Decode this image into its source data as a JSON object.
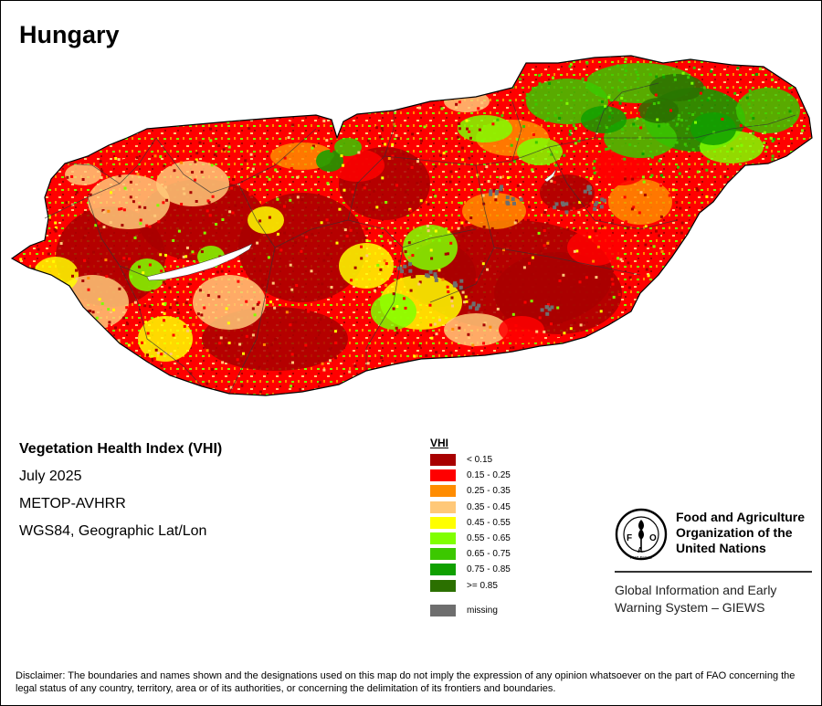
{
  "title": "Hungary",
  "map_info": {
    "index_name": "Vegetation Health Index (VHI)",
    "period": "July 2025",
    "sensor": "METOP-AVHRR",
    "projection": "WGS84, Geographic Lat/Lon"
  },
  "legend": {
    "title": "VHI",
    "classes": [
      {
        "label": "< 0.15",
        "color": "#a80000"
      },
      {
        "label": "0.15 - 0.25",
        "color": "#ff0000"
      },
      {
        "label": "0.25 - 0.35",
        "color": "#ff8c00"
      },
      {
        "label": "0.35 - 0.45",
        "color": "#ffc878"
      },
      {
        "label": "0.45 - 0.55",
        "color": "#ffff00"
      },
      {
        "label": "0.55 - 0.65",
        "color": "#80ff00"
      },
      {
        "label": "0.65 - 0.75",
        "color": "#3cc800"
      },
      {
        "label": "0.75 - 0.85",
        "color": "#10a000"
      },
      {
        "label": ">= 0.85",
        "color": "#2b7000"
      }
    ],
    "missing": {
      "label": "missing",
      "color": "#6e6e6e"
    }
  },
  "logo": {
    "org_line1": "Food and Agriculture",
    "org_line2": "Organization of the",
    "org_line3": "United Nations",
    "giews_line1": "Global Information and Early",
    "giews_line2": "Warning System – GIEWS",
    "acronym": "FAO",
    "motto": "FIAT PANIS"
  },
  "disclaimer": "Disclaimer: The boundaries and names shown and the designations used on this map do not imply the expression of any opinion whatsoever on the part of FAO concerning the legal status of any country, territory, area or of its authorities, or concerning the delimitation of its frontiers and boundaries."
}
